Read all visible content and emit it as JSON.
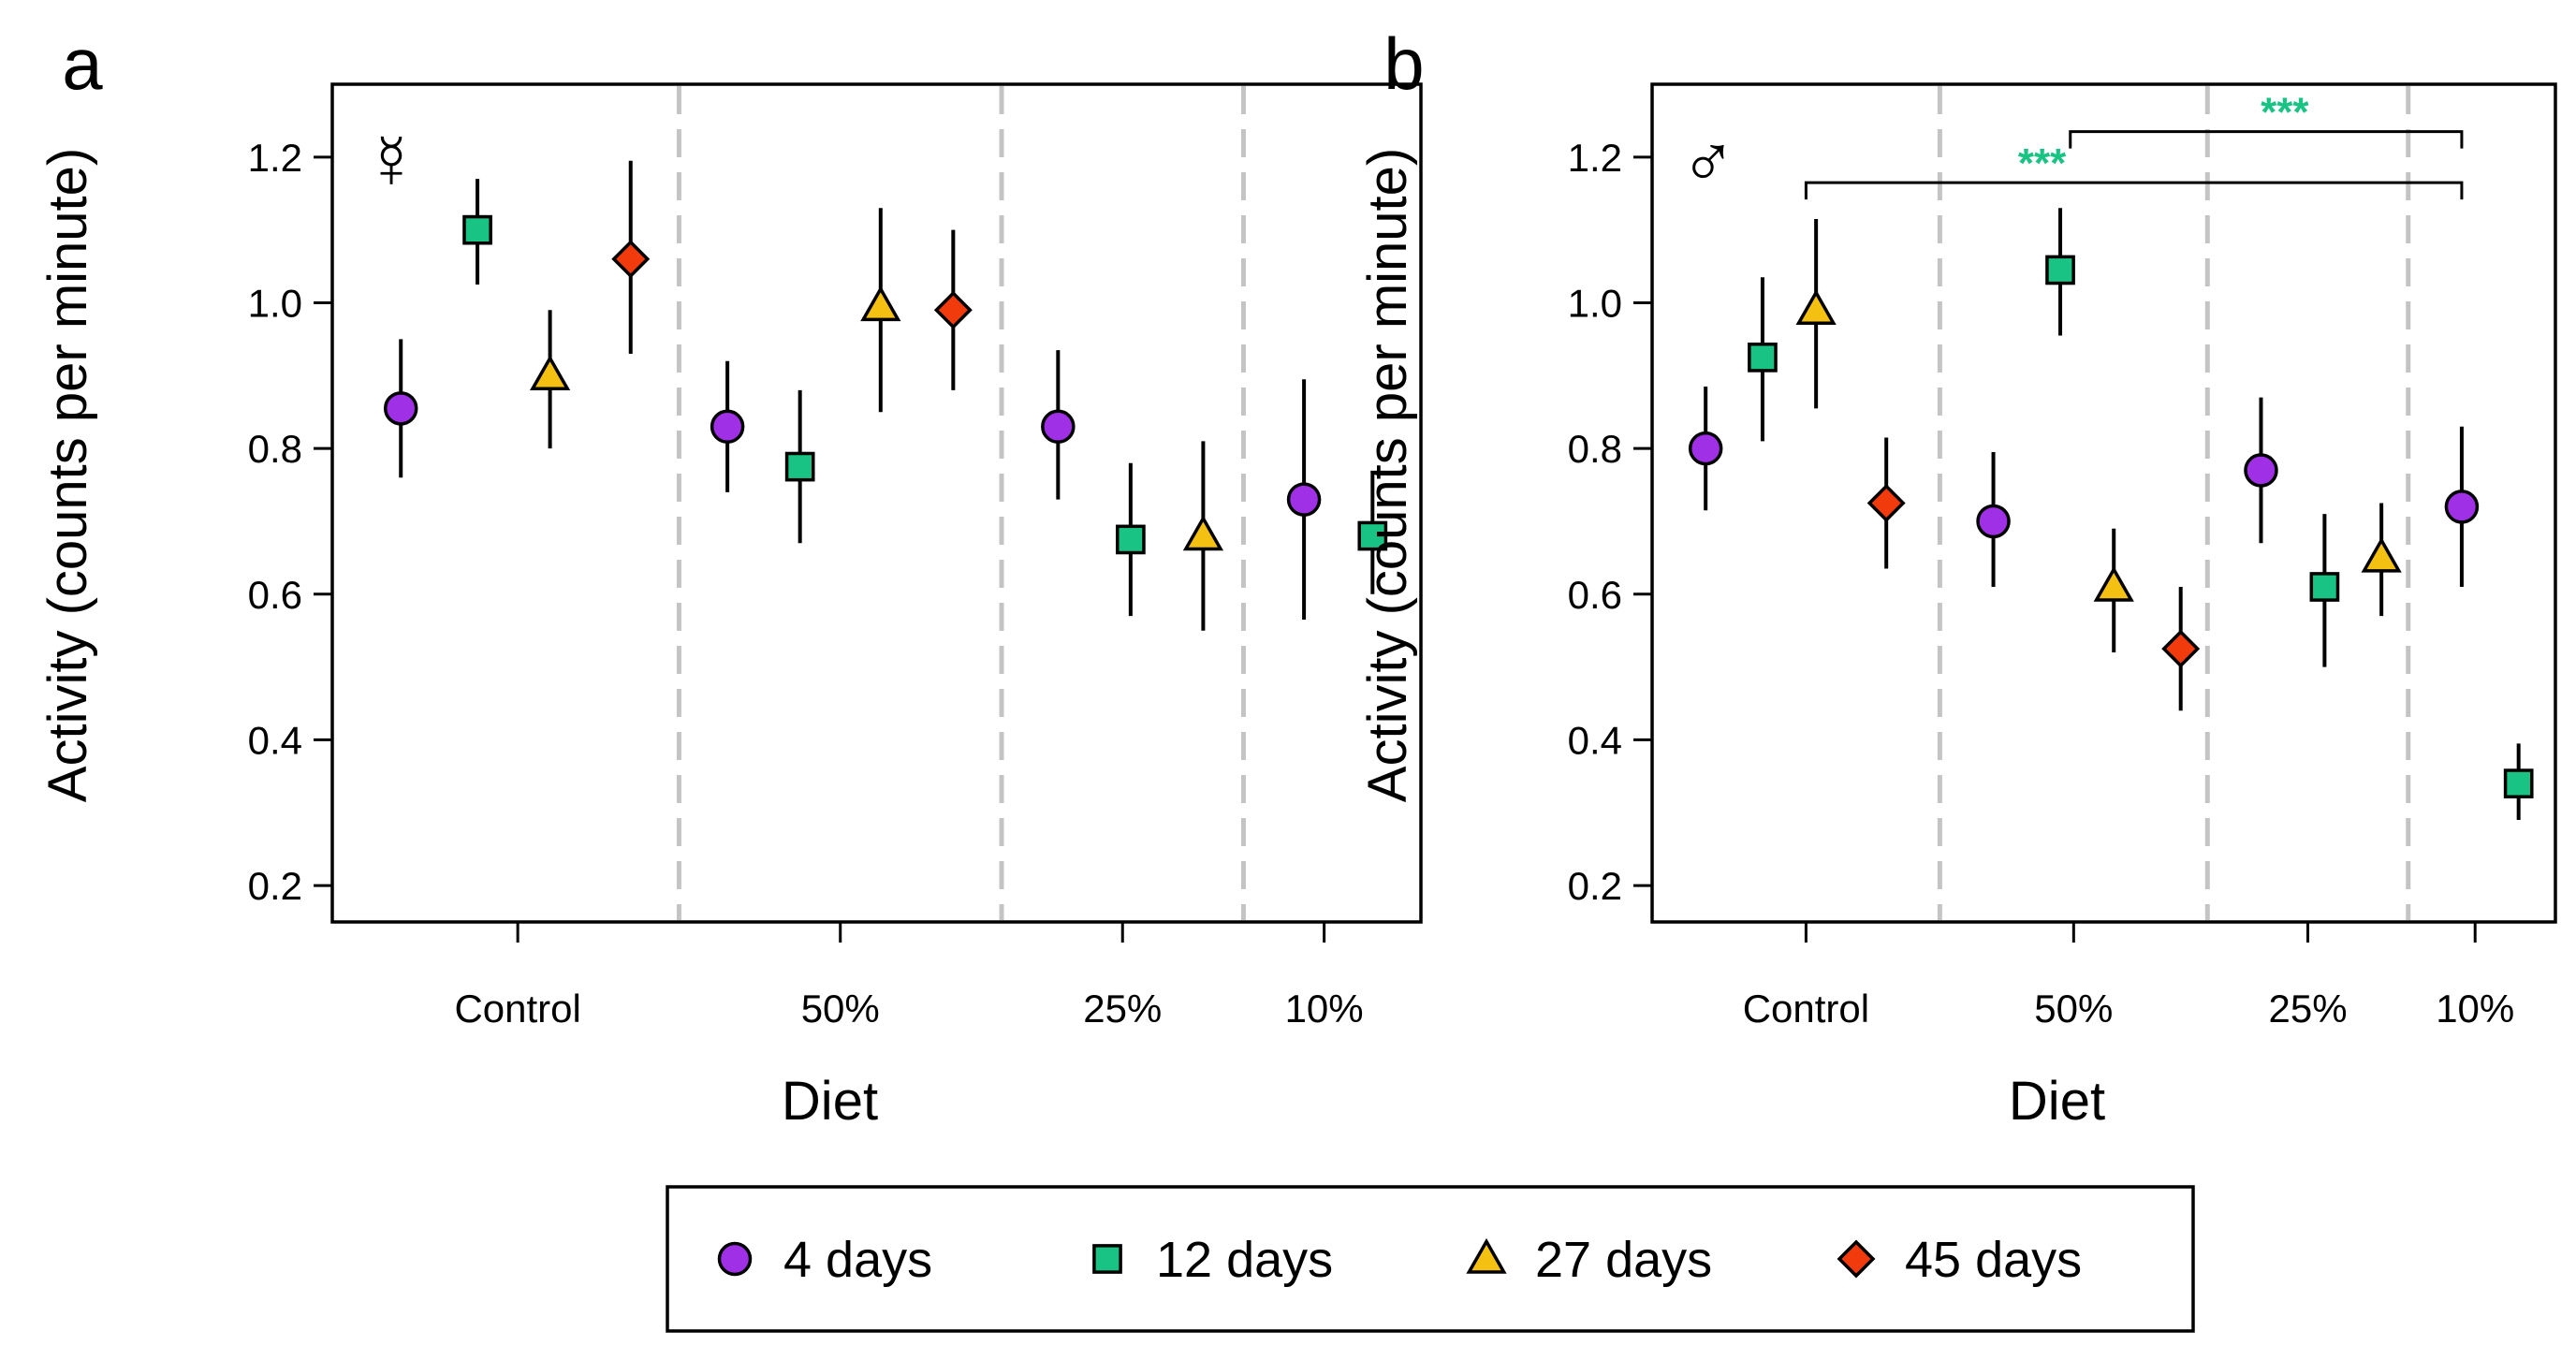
{
  "colors": {
    "4 days": "#a030e6",
    "12 days": "#19c383",
    "27 days": "#f4c012",
    "45 days": "#f23b0c",
    "divider": "#c4c4c4",
    "significance": "#19c383"
  },
  "legend": {
    "entries": [
      {
        "label": "4 days",
        "marker": "circle"
      },
      {
        "label": "12 days",
        "marker": "square"
      },
      {
        "label": "27 days",
        "marker": "triangle"
      },
      {
        "label": "45 days",
        "marker": "diamond"
      }
    ],
    "placement": "bottom-center"
  },
  "chart_data": [
    {
      "type": "scatter",
      "panel_label": "a",
      "sex_symbol": "☿",
      "xlabel": "Diet",
      "ylabel": "Activity (counts per minute)",
      "ylim": [
        0.15,
        1.3
      ],
      "yticks": [
        0.2,
        0.4,
        0.6,
        0.8,
        1.0,
        1.2
      ],
      "ytick_labels": [
        "0.2",
        "0.4",
        "0.6",
        "0.8",
        "1.0",
        "1.2"
      ],
      "groups": [
        {
          "label": "Control",
          "x_start": 0,
          "x_end": 4
        },
        {
          "label": "50%",
          "x_start": 4,
          "x_end": 8
        },
        {
          "label": "25%",
          "x_start": 8,
          "x_end": 11
        },
        {
          "label": "10%",
          "x_start": 11,
          "x_end": 13
        }
      ],
      "xticks": [
        2,
        6,
        9.5,
        12
      ],
      "dividers": [
        4,
        8,
        11
      ],
      "xlim": [
        -0.3,
        13.2
      ],
      "points": [
        {
          "series": "4 days",
          "group": "Control",
          "x": 0.55,
          "y": 0.855,
          "lo": 0.76,
          "hi": 0.95
        },
        {
          "series": "12 days",
          "group": "Control",
          "x": 1.5,
          "y": 1.1,
          "lo": 1.025,
          "hi": 1.17
        },
        {
          "series": "27 days",
          "group": "Control",
          "x": 2.4,
          "y": 0.9,
          "lo": 0.8,
          "hi": 0.99
        },
        {
          "series": "45 days",
          "group": "Control",
          "x": 3.4,
          "y": 1.06,
          "lo": 0.93,
          "hi": 1.195
        },
        {
          "series": "4 days",
          "group": "50%",
          "x": 4.6,
          "y": 0.83,
          "lo": 0.74,
          "hi": 0.92
        },
        {
          "series": "12 days",
          "group": "50%",
          "x": 5.5,
          "y": 0.775,
          "lo": 0.67,
          "hi": 0.88
        },
        {
          "series": "27 days",
          "group": "50%",
          "x": 6.5,
          "y": 0.995,
          "lo": 0.85,
          "hi": 1.13
        },
        {
          "series": "45 days",
          "group": "50%",
          "x": 7.4,
          "y": 0.99,
          "lo": 0.88,
          "hi": 1.1
        },
        {
          "series": "4 days",
          "group": "25%",
          "x": 8.7,
          "y": 0.83,
          "lo": 0.73,
          "hi": 0.935
        },
        {
          "series": "12 days",
          "group": "25%",
          "x": 9.6,
          "y": 0.675,
          "lo": 0.57,
          "hi": 0.78
        },
        {
          "series": "27 days",
          "group": "25%",
          "x": 10.5,
          "y": 0.68,
          "lo": 0.55,
          "hi": 0.81
        },
        {
          "series": "4 days",
          "group": "10%",
          "x": 11.75,
          "y": 0.73,
          "lo": 0.565,
          "hi": 0.895
        },
        {
          "series": "12 days",
          "group": "10%",
          "x": 12.6,
          "y": 0.68,
          "lo": 0.6,
          "hi": 0.765
        }
      ],
      "significance": []
    },
    {
      "type": "scatter",
      "panel_label": "b",
      "sex_symbol": "♂",
      "xlabel": "Diet",
      "ylabel": "Activity (counts per minute)",
      "ylim": [
        0.15,
        1.3
      ],
      "yticks": [
        0.2,
        0.4,
        0.6,
        0.8,
        1.0,
        1.2
      ],
      "ytick_labels": [
        "0.2",
        "0.4",
        "0.6",
        "0.8",
        "1.0",
        "1.2"
      ],
      "groups": [
        {
          "label": "Control",
          "x_start": 0,
          "x_end": 4
        },
        {
          "label": "50%",
          "x_start": 4,
          "x_end": 8
        },
        {
          "label": "25%",
          "x_start": 8,
          "x_end": 11
        },
        {
          "label": "10%",
          "x_start": 11,
          "x_end": 13
        }
      ],
      "xticks": [
        2,
        6,
        9.5,
        12
      ],
      "dividers": [
        4,
        8,
        11
      ],
      "xlim": [
        -0.3,
        13.2
      ],
      "points": [
        {
          "series": "4 days",
          "group": "Control",
          "x": 0.5,
          "y": 0.8,
          "lo": 0.715,
          "hi": 0.885
        },
        {
          "series": "12 days",
          "group": "Control",
          "x": 1.35,
          "y": 0.925,
          "lo": 0.81,
          "hi": 1.035
        },
        {
          "series": "27 days",
          "group": "Control",
          "x": 2.15,
          "y": 0.99,
          "lo": 0.855,
          "hi": 1.115
        },
        {
          "series": "45 days",
          "group": "Control",
          "x": 3.2,
          "y": 0.725,
          "lo": 0.635,
          "hi": 0.815
        },
        {
          "series": "4 days",
          "group": "50%",
          "x": 4.8,
          "y": 0.7,
          "lo": 0.61,
          "hi": 0.795
        },
        {
          "series": "12 days",
          "group": "50%",
          "x": 5.8,
          "y": 1.045,
          "lo": 0.955,
          "hi": 1.13
        },
        {
          "series": "27 days",
          "group": "50%",
          "x": 6.6,
          "y": 0.61,
          "lo": 0.52,
          "hi": 0.69
        },
        {
          "series": "45 days",
          "group": "50%",
          "x": 7.6,
          "y": 0.525,
          "lo": 0.44,
          "hi": 0.61
        },
        {
          "series": "4 days",
          "group": "25%",
          "x": 8.8,
          "y": 0.77,
          "lo": 0.67,
          "hi": 0.87
        },
        {
          "series": "12 days",
          "group": "25%",
          "x": 9.75,
          "y": 0.61,
          "lo": 0.5,
          "hi": 0.71
        },
        {
          "series": "27 days",
          "group": "25%",
          "x": 10.6,
          "y": 0.65,
          "lo": 0.57,
          "hi": 0.725
        },
        {
          "series": "4 days",
          "group": "10%",
          "x": 11.8,
          "y": 0.72,
          "lo": 0.61,
          "hi": 0.83
        },
        {
          "series": "12 days",
          "group": "10%",
          "x": 12.65,
          "y": 0.34,
          "lo": 0.29,
          "hi": 0.395
        }
      ],
      "significance": [
        {
          "from": "50%",
          "to": "10%",
          "x_from": 5.95,
          "x_to": 11.8,
          "y": 1.235,
          "label": "***"
        },
        {
          "from": "Control",
          "to": "10%",
          "x_from": 2.0,
          "x_to": 11.8,
          "y": 1.165,
          "label": "***"
        }
      ]
    }
  ]
}
